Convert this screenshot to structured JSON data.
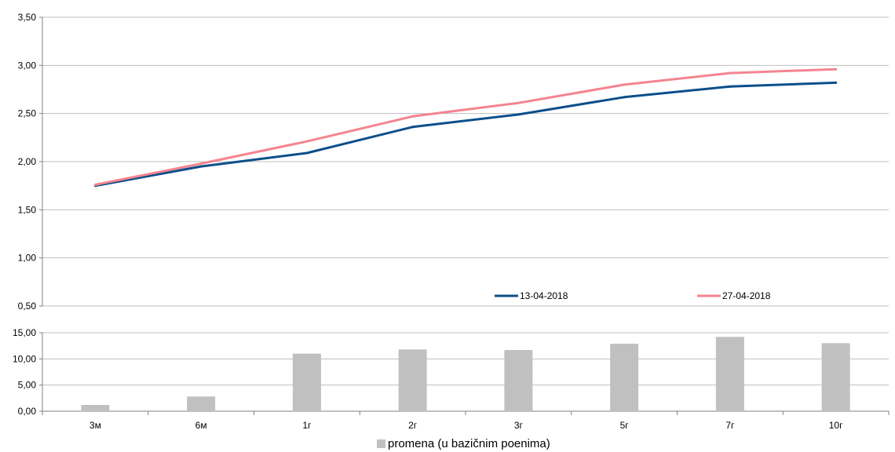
{
  "chart_data": [
    {
      "type": "line",
      "categories": [
        "3м",
        "6м",
        "1г",
        "2г",
        "3г",
        "5г",
        "7г",
        "10г"
      ],
      "series": [
        {
          "name": "13-04-2018",
          "color": "#0b4f8a",
          "values": [
            1.75,
            1.95,
            2.09,
            2.36,
            2.49,
            2.67,
            2.78,
            2.82
          ]
        },
        {
          "name": "27-04-2018",
          "color": "#f4848f",
          "values": [
            1.76,
            1.98,
            2.21,
            2.47,
            2.61,
            2.8,
            2.92,
            2.96
          ]
        }
      ],
      "ylim": [
        0.5,
        3.5
      ],
      "y_ticks": [
        "0,50",
        "1,00",
        "1,50",
        "2,00",
        "2,50",
        "3,00",
        "3,50"
      ],
      "grid": true,
      "legend": "inside-bottom"
    },
    {
      "type": "bar",
      "categories": [
        "3м",
        "6м",
        "1г",
        "2г",
        "3г",
        "5г",
        "7г",
        "10г"
      ],
      "series": [
        {
          "name": "promena (u bazičnim poenima)",
          "color": "#c0c0c0",
          "values": [
            1.2,
            2.8,
            11.0,
            11.8,
            11.7,
            12.9,
            14.2,
            13.0
          ]
        }
      ],
      "ylim": [
        0,
        15
      ],
      "y_ticks": [
        "0,00",
        "5,00",
        "10,00",
        "15,00"
      ],
      "grid": true,
      "legend": "bottom-center"
    }
  ]
}
